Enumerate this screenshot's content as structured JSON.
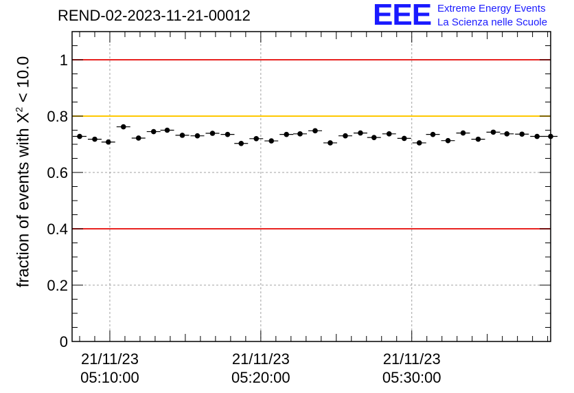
{
  "header": {
    "title": "REND-02-2023-11-21-00012",
    "logo_text": "EEE",
    "logo_line1": "Extreme Energy Events",
    "logo_line2": "La Scienza nelle Scuole"
  },
  "axis": {
    "ylabel_main": "fraction of events with X",
    "ylabel_sup": "2",
    "ylabel_tail": " < 10.0"
  },
  "colors": {
    "red_line": "#e8211f",
    "yellow_line": "#ffc800",
    "marker": "#000000",
    "logo": "#1a1aff"
  },
  "chart_data": {
    "type": "scatter",
    "title": "REND-02-2023-11-21-00012",
    "ylabel": "fraction of events with X^2 < 10.0",
    "xlabel": "",
    "ylim": [
      0,
      1.1
    ],
    "x_tick_labels": [
      [
        "21/11/23",
        "05:10:00"
      ],
      [
        "21/11/23",
        "05:20:00"
      ],
      [
        "21/11/23",
        "05:30:00"
      ]
    ],
    "x_tick_minutes": [
      10,
      20,
      30
    ],
    "xlim_minutes": [
      7.5,
      39.2
    ],
    "y_tick_labels": [
      "0",
      "0.2",
      "0.4",
      "0.6",
      "0.8",
      "1"
    ],
    "y_ticks": [
      0,
      0.2,
      0.4,
      0.6,
      0.8,
      1.0
    ],
    "reference_lines": [
      {
        "y": 1.0,
        "color": "red"
      },
      {
        "y": 0.8,
        "color": "yellow"
      },
      {
        "y": 0.4,
        "color": "red"
      }
    ],
    "grid": true,
    "series": [
      {
        "x_minutes": [
          8.0,
          9.0,
          9.9,
          10.9,
          11.9,
          12.9,
          13.8,
          14.8,
          15.8,
          16.8,
          17.8,
          18.7,
          19.7,
          20.7,
          21.7,
          22.6,
          23.6,
          24.6,
          25.6,
          26.6,
          27.5,
          28.5,
          29.5,
          30.5,
          31.4,
          32.4,
          33.4,
          34.4,
          35.4,
          36.3,
          37.3,
          38.3,
          39.2
        ],
        "y": [
          0.728,
          0.718,
          0.708,
          0.762,
          0.722,
          0.745,
          0.75,
          0.732,
          0.73,
          0.739,
          0.735,
          0.703,
          0.72,
          0.712,
          0.735,
          0.737,
          0.748,
          0.705,
          0.73,
          0.74,
          0.724,
          0.737,
          0.721,
          0.705,
          0.735,
          0.713,
          0.74,
          0.718,
          0.743,
          0.737,
          0.736,
          0.728,
          0.728
        ],
        "yerr": 0.008
      }
    ]
  }
}
